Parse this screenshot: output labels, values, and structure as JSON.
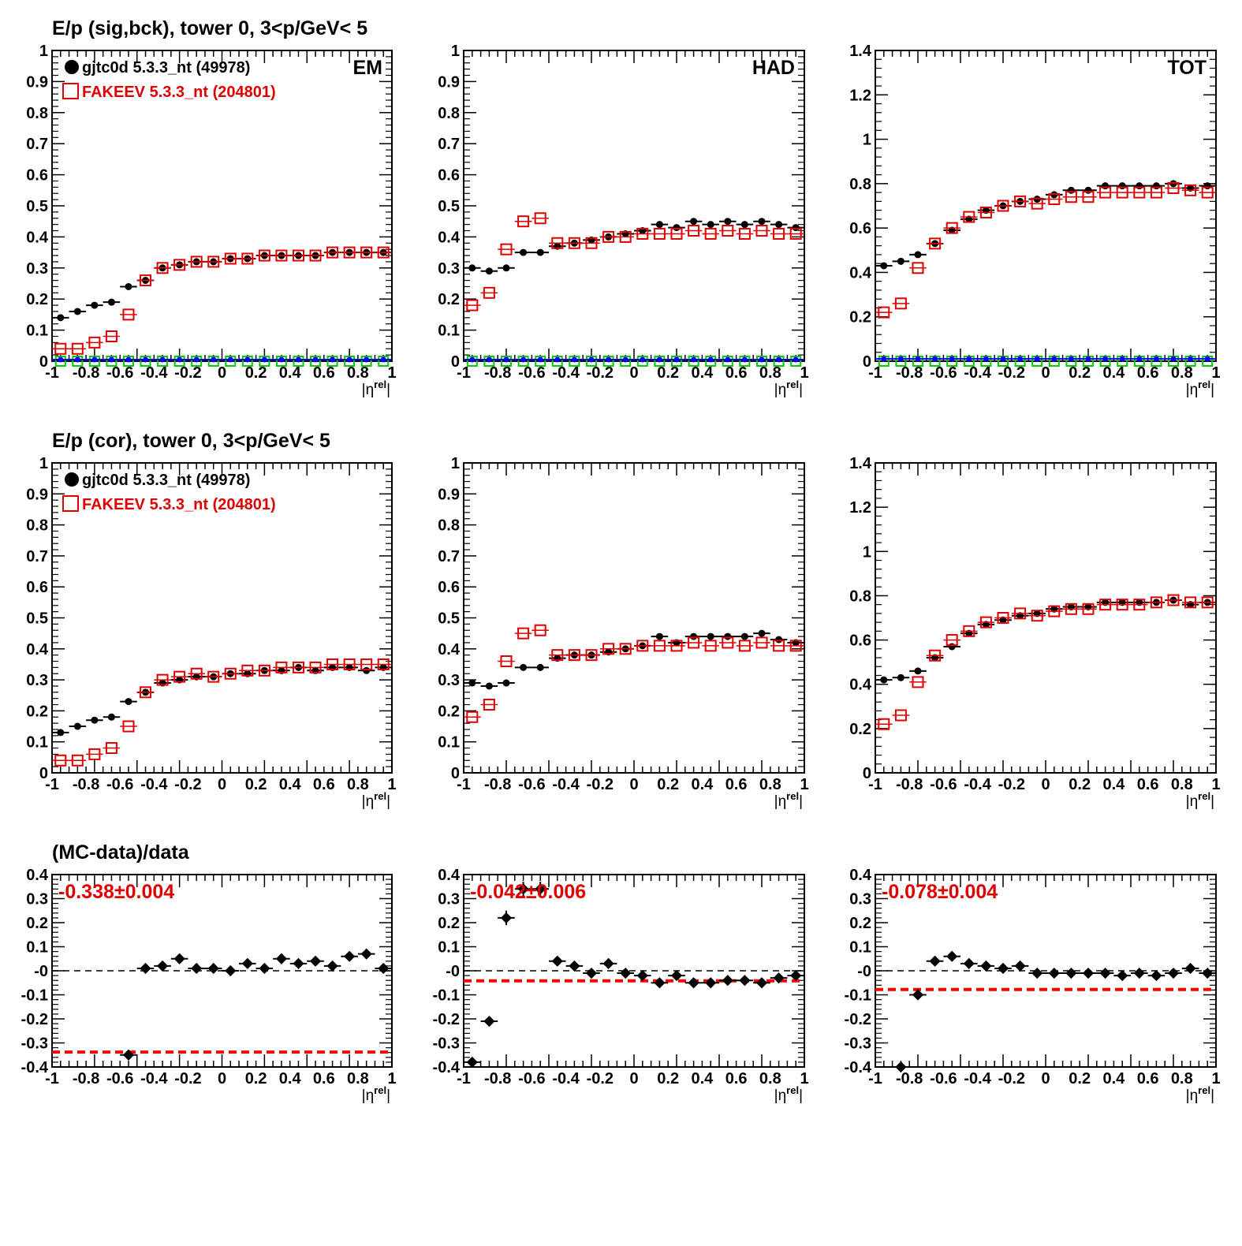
{
  "figure": {
    "row_titles": [
      "E/p (sig,bck), tower 0,  3<p/GeV< 5",
      "E/p (cor), tower 0,  3<p/GeV< 5",
      "(MC-data)/data"
    ],
    "legend": {
      "data_label": "gjtc0d 5.3.3_nt (49978)",
      "mc_label": "FAKEEV 5.3.3_nt (204801)"
    },
    "panel_tags": [
      "EM",
      "HAD",
      "TOT"
    ],
    "x_axis_label": "|η^rel|",
    "x_ticks": [
      "-1",
      "-0.8",
      "-0.6",
      "-0.4",
      "-0.2",
      "0",
      "0.2",
      "0.4",
      "0.6",
      "0.8",
      "1"
    ],
    "ratio_fit_labels": [
      "-0.338±0.004",
      "-0.042±0.006",
      "-0.078±0.004"
    ],
    "colors": {
      "data": "#000000",
      "mc": "#e00000",
      "background_data": "#0000ff",
      "background_mc": "#00cc00",
      "fit_line": "#ff0000"
    }
  },
  "chart_data": [
    {
      "type": "scatter",
      "panel": "EM",
      "row": "sig,bck",
      "xlim": [
        -1,
        1
      ],
      "ylim": [
        0,
        1
      ],
      "yticks": [
        0,
        0.1,
        0.2,
        0.3,
        0.4,
        0.5,
        0.6,
        0.7,
        0.8,
        0.9,
        1
      ],
      "x": [
        -0.95,
        -0.85,
        -0.75,
        -0.65,
        -0.55,
        -0.45,
        -0.35,
        -0.25,
        -0.15,
        -0.05,
        0.05,
        0.15,
        0.25,
        0.35,
        0.45,
        0.55,
        0.65,
        0.75,
        0.85,
        0.95
      ],
      "series": [
        {
          "name": "gjtc0d 5.3.3_nt (49978)",
          "values": [
            0.14,
            0.16,
            0.18,
            0.19,
            0.24,
            0.26,
            0.3,
            0.31,
            0.32,
            0.32,
            0.33,
            0.33,
            0.34,
            0.34,
            0.34,
            0.34,
            0.35,
            0.35,
            0.35,
            0.35
          ]
        },
        {
          "name": "FAKEEV 5.3.3_nt (204801)",
          "values": [
            0.04,
            0.04,
            0.06,
            0.08,
            0.15,
            0.26,
            0.3,
            0.31,
            0.32,
            0.32,
            0.33,
            0.33,
            0.34,
            0.34,
            0.34,
            0.34,
            0.35,
            0.35,
            0.35,
            0.35
          ]
        },
        {
          "values": [
            0.005,
            0.005,
            0.005,
            0.005,
            0.005,
            0.005,
            0.005,
            0.005,
            0.005,
            0.005,
            0.005,
            0.005,
            0.005,
            0.005,
            0.005,
            0.005,
            0.005,
            0.005,
            0.005,
            0.005
          ]
        },
        {
          "values": [
            0.0,
            0.0,
            0.0,
            0.0,
            0.0,
            0.0,
            0.0,
            0.0,
            0.0,
            0.0,
            0.0,
            0.0,
            0.0,
            0.0,
            0.0,
            0.0,
            0.0,
            0.0,
            0.0,
            0.0
          ]
        }
      ]
    },
    {
      "type": "scatter",
      "panel": "HAD",
      "row": "sig,bck",
      "xlim": [
        -1,
        1
      ],
      "ylim": [
        0,
        1
      ],
      "yticks": [
        0,
        0.1,
        0.2,
        0.3,
        0.4,
        0.5,
        0.6,
        0.7,
        0.8,
        0.9,
        1
      ],
      "x": [
        -0.95,
        -0.85,
        -0.75,
        -0.65,
        -0.55,
        -0.45,
        -0.35,
        -0.25,
        -0.15,
        -0.05,
        0.05,
        0.15,
        0.25,
        0.35,
        0.45,
        0.55,
        0.65,
        0.75,
        0.85,
        0.95
      ],
      "series": [
        {
          "name": "gjtc0d 5.3.3_nt (49978)",
          "values": [
            0.3,
            0.29,
            0.3,
            0.35,
            0.35,
            0.37,
            0.38,
            0.39,
            0.4,
            0.41,
            0.42,
            0.44,
            0.43,
            0.45,
            0.44,
            0.45,
            0.44,
            0.45,
            0.44,
            0.43
          ]
        },
        {
          "name": "FAKEEV 5.3.3_nt (204801)",
          "values": [
            0.18,
            0.22,
            0.36,
            0.45,
            0.46,
            0.38,
            0.38,
            0.38,
            0.4,
            0.4,
            0.41,
            0.41,
            0.41,
            0.42,
            0.41,
            0.42,
            0.41,
            0.42,
            0.41,
            0.41
          ]
        },
        {
          "values": [
            0.005,
            0.005,
            0.005,
            0.005,
            0.005,
            0.005,
            0.005,
            0.005,
            0.005,
            0.005,
            0.005,
            0.005,
            0.005,
            0.005,
            0.005,
            0.005,
            0.005,
            0.005,
            0.005,
            0.005
          ]
        },
        {
          "values": [
            0.0,
            0.0,
            0.0,
            0.0,
            0.0,
            0.0,
            0.0,
            0.0,
            0.0,
            0.0,
            0.0,
            0.0,
            0.0,
            0.0,
            0.0,
            0.0,
            0.0,
            0.0,
            0.0,
            0.0
          ]
        }
      ]
    },
    {
      "type": "scatter",
      "panel": "TOT",
      "row": "sig,bck",
      "xlim": [
        -1,
        1
      ],
      "ylim": [
        0,
        1.4
      ],
      "yticks": [
        0,
        0.2,
        0.4,
        0.6,
        0.8,
        1,
        1.2,
        1.4
      ],
      "x": [
        -0.95,
        -0.85,
        -0.75,
        -0.65,
        -0.55,
        -0.45,
        -0.35,
        -0.25,
        -0.15,
        -0.05,
        0.05,
        0.15,
        0.25,
        0.35,
        0.45,
        0.55,
        0.65,
        0.75,
        0.85,
        0.95
      ],
      "series": [
        {
          "name": "gjtc0d 5.3.3_nt (49978)",
          "values": [
            0.43,
            0.45,
            0.48,
            0.53,
            0.59,
            0.64,
            0.68,
            0.7,
            0.72,
            0.73,
            0.75,
            0.77,
            0.77,
            0.79,
            0.79,
            0.79,
            0.79,
            0.8,
            0.78,
            0.79
          ]
        },
        {
          "name": "FAKEEV 5.3.3_nt (204801)",
          "values": [
            0.22,
            0.26,
            0.42,
            0.53,
            0.6,
            0.65,
            0.67,
            0.7,
            0.72,
            0.71,
            0.73,
            0.74,
            0.74,
            0.76,
            0.76,
            0.76,
            0.76,
            0.78,
            0.77,
            0.76
          ]
        },
        {
          "values": [
            0.01,
            0.01,
            0.01,
            0.01,
            0.01,
            0.01,
            0.01,
            0.01,
            0.01,
            0.01,
            0.01,
            0.01,
            0.01,
            0.01,
            0.01,
            0.01,
            0.01,
            0.01,
            0.01,
            0.01
          ]
        },
        {
          "values": [
            0.0,
            0.0,
            0.0,
            0.0,
            0.0,
            0.0,
            0.0,
            0.0,
            0.0,
            0.0,
            0.0,
            0.0,
            0.0,
            0.0,
            0.0,
            0.0,
            0.0,
            0.0,
            0.0,
            0.0
          ]
        }
      ]
    },
    {
      "type": "scatter",
      "panel": "EM",
      "row": "cor",
      "xlim": [
        -1,
        1
      ],
      "ylim": [
        0,
        1
      ],
      "yticks": [
        0,
        0.1,
        0.2,
        0.3,
        0.4,
        0.5,
        0.6,
        0.7,
        0.8,
        0.9,
        1
      ],
      "x": [
        -0.95,
        -0.85,
        -0.75,
        -0.65,
        -0.55,
        -0.45,
        -0.35,
        -0.25,
        -0.15,
        -0.05,
        0.05,
        0.15,
        0.25,
        0.35,
        0.45,
        0.55,
        0.65,
        0.75,
        0.85,
        0.95
      ],
      "series": [
        {
          "name": "gjtc0d 5.3.3_nt (49978)",
          "values": [
            0.13,
            0.15,
            0.17,
            0.18,
            0.23,
            0.26,
            0.29,
            0.3,
            0.31,
            0.31,
            0.32,
            0.32,
            0.33,
            0.33,
            0.34,
            0.33,
            0.34,
            0.34,
            0.33,
            0.34
          ]
        },
        {
          "name": "FAKEEV 5.3.3_nt (204801)",
          "values": [
            0.04,
            0.04,
            0.06,
            0.08,
            0.15,
            0.26,
            0.3,
            0.31,
            0.32,
            0.31,
            0.32,
            0.33,
            0.33,
            0.34,
            0.34,
            0.34,
            0.35,
            0.35,
            0.35,
            0.35
          ]
        }
      ]
    },
    {
      "type": "scatter",
      "panel": "HAD",
      "row": "cor",
      "xlim": [
        -1,
        1
      ],
      "ylim": [
        0,
        1
      ],
      "yticks": [
        0,
        0.1,
        0.2,
        0.3,
        0.4,
        0.5,
        0.6,
        0.7,
        0.8,
        0.9,
        1
      ],
      "x": [
        -0.95,
        -0.85,
        -0.75,
        -0.65,
        -0.55,
        -0.45,
        -0.35,
        -0.25,
        -0.15,
        -0.05,
        0.05,
        0.15,
        0.25,
        0.35,
        0.45,
        0.55,
        0.65,
        0.75,
        0.85,
        0.95
      ],
      "series": [
        {
          "name": "gjtc0d 5.3.3_nt (49978)",
          "values": [
            0.29,
            0.28,
            0.29,
            0.34,
            0.34,
            0.37,
            0.38,
            0.38,
            0.39,
            0.4,
            0.41,
            0.44,
            0.42,
            0.44,
            0.44,
            0.44,
            0.44,
            0.45,
            0.43,
            0.42
          ]
        },
        {
          "name": "FAKEEV 5.3.3_nt (204801)",
          "values": [
            0.18,
            0.22,
            0.36,
            0.45,
            0.46,
            0.38,
            0.38,
            0.38,
            0.4,
            0.4,
            0.41,
            0.41,
            0.41,
            0.42,
            0.41,
            0.42,
            0.41,
            0.42,
            0.41,
            0.41
          ]
        }
      ]
    },
    {
      "type": "scatter",
      "panel": "TOT",
      "row": "cor",
      "xlim": [
        -1,
        1
      ],
      "ylim": [
        0,
        1.4
      ],
      "yticks": [
        0,
        0.2,
        0.4,
        0.6,
        0.8,
        1,
        1.2,
        1.4
      ],
      "x": [
        -0.95,
        -0.85,
        -0.75,
        -0.65,
        -0.55,
        -0.45,
        -0.35,
        -0.25,
        -0.15,
        -0.05,
        0.05,
        0.15,
        0.25,
        0.35,
        0.45,
        0.55,
        0.65,
        0.75,
        0.85,
        0.95
      ],
      "series": [
        {
          "name": "gjtc0d 5.3.3_nt (49978)",
          "values": [
            0.42,
            0.43,
            0.46,
            0.52,
            0.57,
            0.63,
            0.67,
            0.69,
            0.71,
            0.72,
            0.74,
            0.75,
            0.75,
            0.77,
            0.77,
            0.77,
            0.77,
            0.78,
            0.76,
            0.77
          ]
        },
        {
          "name": "FAKEEV 5.3.3_nt (204801)",
          "values": [
            0.22,
            0.26,
            0.41,
            0.53,
            0.6,
            0.64,
            0.68,
            0.7,
            0.72,
            0.71,
            0.73,
            0.74,
            0.74,
            0.76,
            0.76,
            0.76,
            0.77,
            0.78,
            0.77,
            0.77
          ]
        }
      ]
    },
    {
      "type": "scatter",
      "panel": "EM",
      "row": "ratio",
      "xlim": [
        -1,
        1
      ],
      "ylim": [
        -0.4,
        0.4
      ],
      "yticks": [
        -0.4,
        -0.3,
        -0.2,
        -0.1,
        0,
        0.1,
        0.2,
        0.3,
        0.4
      ],
      "ytick_labels": [
        "-0.4",
        "-0.3",
        "-0.2",
        "-0.1",
        "-0",
        "0.1",
        "0.2",
        "0.3",
        "0.4"
      ],
      "x": [
        -0.55,
        -0.45,
        -0.35,
        -0.25,
        -0.15,
        -0.05,
        0.05,
        0.15,
        0.25,
        0.35,
        0.45,
        0.55,
        0.65,
        0.75,
        0.85,
        0.95
      ],
      "series": [
        {
          "name": "ratio",
          "values": [
            -0.35,
            0.01,
            0.02,
            0.05,
            0.01,
            0.01,
            0.0,
            0.03,
            0.01,
            0.05,
            0.03,
            0.04,
            0.02,
            0.06,
            0.07,
            0.01
          ]
        }
      ],
      "errors": [
        0.01,
        0.02,
        0.02,
        0.02,
        0.02,
        0.02,
        0.02,
        0.02,
        0.02,
        0.02,
        0.02,
        0.02,
        0.02,
        0.02,
        0.02,
        0.02
      ],
      "fit": -0.338,
      "fit_label": "-0.338±0.004"
    },
    {
      "type": "scatter",
      "panel": "HAD",
      "row": "ratio",
      "xlim": [
        -1,
        1
      ],
      "ylim": [
        -0.4,
        0.4
      ],
      "yticks": [
        -0.4,
        -0.3,
        -0.2,
        -0.1,
        0,
        0.1,
        0.2,
        0.3,
        0.4
      ],
      "ytick_labels": [
        "-0.4",
        "-0.3",
        "-0.2",
        "-0.1",
        "-0",
        "0.1",
        "0.2",
        "0.3",
        "0.4"
      ],
      "x": [
        -0.95,
        -0.85,
        -0.75,
        -0.65,
        -0.55,
        -0.45,
        -0.35,
        -0.25,
        -0.15,
        -0.05,
        0.05,
        0.15,
        0.25,
        0.35,
        0.45,
        0.55,
        0.65,
        0.75,
        0.85,
        0.95
      ],
      "series": [
        {
          "name": "ratio",
          "values": [
            -0.38,
            -0.21,
            0.22,
            0.34,
            0.34,
            0.04,
            0.02,
            -0.01,
            0.03,
            -0.01,
            -0.02,
            -0.05,
            -0.02,
            -0.05,
            -0.05,
            -0.04,
            -0.04,
            -0.05,
            -0.03,
            -0.02
          ]
        }
      ],
      "errors": [
        0.02,
        0.02,
        0.03,
        0.03,
        0.03,
        0.02,
        0.02,
        0.02,
        0.02,
        0.02,
        0.02,
        0.02,
        0.02,
        0.02,
        0.02,
        0.02,
        0.02,
        0.02,
        0.02,
        0.02
      ],
      "fit": -0.042,
      "fit_label": "-0.042±0.006"
    },
    {
      "type": "scatter",
      "panel": "TOT",
      "row": "ratio",
      "xlim": [
        -1,
        1
      ],
      "ylim": [
        -0.4,
        0.4
      ],
      "yticks": [
        -0.4,
        -0.3,
        -0.2,
        -0.1,
        0,
        0.1,
        0.2,
        0.3,
        0.4
      ],
      "ytick_labels": [
        "-0.4",
        "-0.3",
        "-0.2",
        "-0.1",
        "-0",
        "0.1",
        "0.2",
        "0.3",
        "0.4"
      ],
      "x": [
        -0.85,
        -0.75,
        -0.65,
        -0.55,
        -0.45,
        -0.35,
        -0.25,
        -0.15,
        -0.05,
        0.05,
        0.15,
        0.25,
        0.35,
        0.45,
        0.55,
        0.65,
        0.75,
        0.85,
        0.95
      ],
      "series": [
        {
          "name": "ratio",
          "values": [
            -0.4,
            -0.1,
            0.04,
            0.06,
            0.03,
            0.02,
            0.01,
            0.02,
            -0.01,
            -0.01,
            -0.01,
            -0.01,
            -0.01,
            -0.02,
            -0.01,
            -0.02,
            -0.01,
            0.01,
            -0.01
          ]
        }
      ],
      "errors": [
        0.01,
        0.01,
        0.02,
        0.02,
        0.01,
        0.01,
        0.01,
        0.01,
        0.01,
        0.01,
        0.01,
        0.01,
        0.01,
        0.01,
        0.01,
        0.01,
        0.01,
        0.01,
        0.01
      ],
      "fit": -0.078,
      "fit_label": "-0.078±0.004"
    }
  ]
}
